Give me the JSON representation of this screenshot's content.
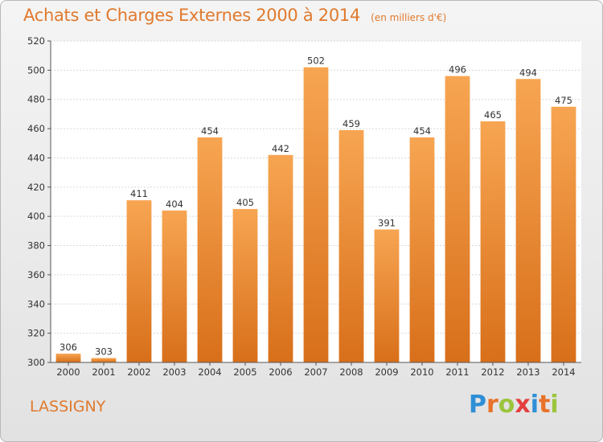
{
  "header": {
    "title": "Achats et Charges Externes 2000 à 2014",
    "subtitle": "(en milliers d'€)"
  },
  "footer": {
    "place": "LASSIGNY",
    "logo_letters": [
      "P",
      "r",
      "o",
      "x",
      "i",
      "t",
      "i"
    ],
    "logo_colors": [
      "#2e8fd6",
      "#e8722a",
      "#9bc53d",
      "#e53e3e",
      "#2e8fd6",
      "#e8722a",
      "#9bc53d"
    ]
  },
  "chart_data": {
    "type": "bar",
    "categories": [
      "2000",
      "2001",
      "2002",
      "2003",
      "2004",
      "2005",
      "2006",
      "2007",
      "2008",
      "2009",
      "2010",
      "2011",
      "2012",
      "2013",
      "2014"
    ],
    "values": [
      306,
      303,
      411,
      404,
      454,
      405,
      442,
      502,
      459,
      391,
      454,
      496,
      465,
      494,
      475
    ],
    "ylim": [
      300,
      520
    ],
    "yticks": [
      300,
      320,
      340,
      360,
      380,
      400,
      420,
      440,
      460,
      480,
      500,
      520
    ],
    "grid": true,
    "bar_color_top": "#f7a552",
    "bar_color_bottom": "#d86f1a"
  }
}
